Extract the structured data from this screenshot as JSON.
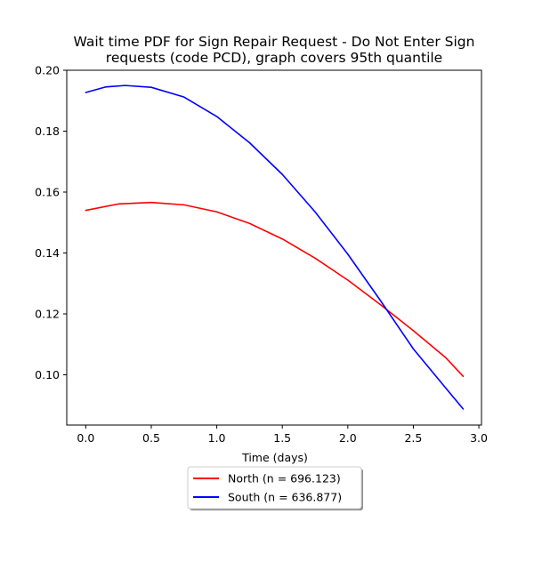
{
  "chart_data": {
    "type": "line",
    "title_lines": [
      "Wait time PDF for Sign Repair Request - Do Not Enter Sign",
      "requests (code PCD), graph covers 95th quantile"
    ],
    "xlabel": "Time (days)",
    "ylabel": "",
    "xlim": [
      -0.145,
      3.02
    ],
    "ylim": [
      0.0835,
      0.2
    ],
    "xticks": [
      0.0,
      0.5,
      1.0,
      1.5,
      2.0,
      2.5,
      3.0
    ],
    "xtick_labels": [
      "0.0",
      "0.5",
      "1.0",
      "1.5",
      "2.0",
      "2.5",
      "3.0"
    ],
    "yticks": [
      0.1,
      0.12,
      0.14,
      0.16,
      0.18,
      0.2
    ],
    "ytick_labels": [
      "0.10",
      "0.12",
      "0.14",
      "0.16",
      "0.18",
      "0.20"
    ],
    "grid": false,
    "legend_position": "below-center",
    "series": [
      {
        "name": "North (n = 696.123)",
        "color": "#ff0000",
        "x": [
          0.0,
          0.25,
          0.5,
          0.75,
          1.0,
          1.25,
          1.5,
          1.75,
          2.0,
          2.25,
          2.5,
          2.75,
          2.88
        ],
        "y": [
          0.154,
          0.1561,
          0.1566,
          0.1558,
          0.1535,
          0.1497,
          0.1446,
          0.1383,
          0.1311,
          0.123,
          0.1145,
          0.1055,
          0.0995
        ]
      },
      {
        "name": "South (n = 636.877)",
        "color": "#0000ff",
        "x": [
          0.0,
          0.15,
          0.3,
          0.5,
          0.75,
          1.0,
          1.25,
          1.5,
          1.75,
          2.0,
          2.25,
          2.5,
          2.75,
          2.88
        ],
        "y": [
          0.1927,
          0.1945,
          0.195,
          0.1944,
          0.1912,
          0.1848,
          0.1762,
          0.1658,
          0.1535,
          0.1396,
          0.1243,
          0.1085,
          0.0955,
          0.0888
        ]
      }
    ]
  }
}
